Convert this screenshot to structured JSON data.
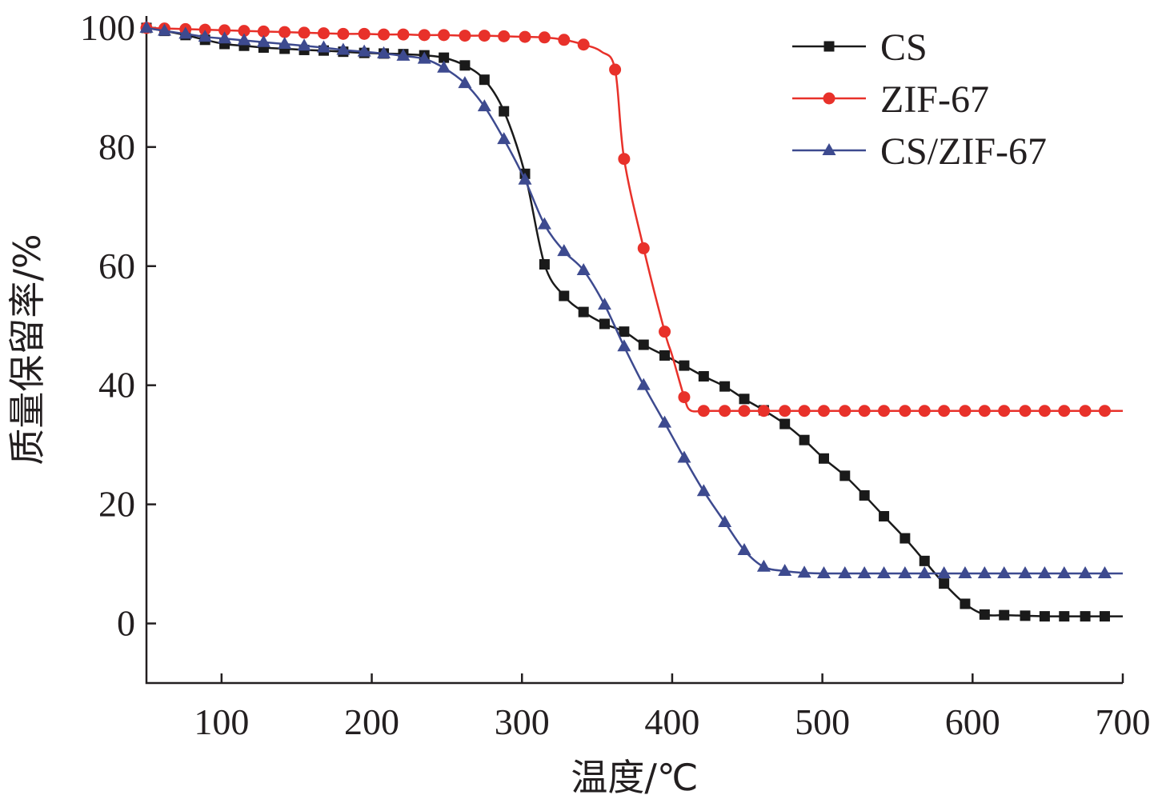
{
  "chart_data": {
    "type": "line",
    "xlabel": "温度/℃",
    "ylabel": "质量保留率/%",
    "xlim": [
      50,
      700
    ],
    "ylim": [
      -10,
      102
    ],
    "xticks": [
      100,
      200,
      300,
      400,
      500,
      600,
      700
    ],
    "yticks": [
      0,
      20,
      40,
      60,
      80,
      100
    ],
    "grid": false,
    "legend_position": "top-right",
    "series": [
      {
        "name": "CS",
        "color": "#1a1a1a",
        "marker": "square",
        "x": [
          50,
          62,
          76,
          89,
          102,
          115,
          128,
          142,
          155,
          168,
          181,
          195,
          208,
          221,
          235,
          248,
          262,
          275,
          288,
          302,
          315,
          328,
          341,
          355,
          368,
          381,
          395,
          408,
          421,
          435,
          448,
          461,
          475,
          488,
          501,
          515,
          528,
          541,
          555,
          568,
          581,
          595,
          608,
          621,
          635,
          648,
          661,
          675,
          688,
          700
        ],
        "y": [
          100,
          99.5,
          98.8,
          98.0,
          97.3,
          97.0,
          96.7,
          96.5,
          96.3,
          96.2,
          96.0,
          95.8,
          95.7,
          95.6,
          95.4,
          95.0,
          93.7,
          91.3,
          86.0,
          75.5,
          60.3,
          55.0,
          52.3,
          50.3,
          49.0,
          46.8,
          45.0,
          43.3,
          41.5,
          39.8,
          37.7,
          35.8,
          33.5,
          30.8,
          27.7,
          24.8,
          21.5,
          18.0,
          14.3,
          10.5,
          6.7,
          3.3,
          1.5,
          1.4,
          1.3,
          1.2,
          1.2,
          1.2,
          1.2,
          1.2
        ],
        "marker_indices": [
          0,
          1,
          2,
          3,
          4,
          5,
          6,
          7,
          8,
          9,
          10,
          11,
          12,
          13,
          14,
          15,
          16,
          17,
          18,
          19,
          20,
          21,
          22,
          23,
          24,
          25,
          26,
          27,
          28,
          29,
          30,
          31,
          32,
          33,
          34,
          35,
          36,
          37,
          38,
          39,
          40,
          41,
          42,
          43,
          44,
          45,
          46,
          47,
          48
        ]
      },
      {
        "name": "ZIF-67",
        "color": "#e8312a",
        "marker": "circle",
        "x": [
          50,
          62,
          76,
          89,
          102,
          115,
          128,
          142,
          155,
          168,
          181,
          195,
          208,
          221,
          235,
          248,
          262,
          275,
          288,
          302,
          315,
          328,
          341,
          353,
          362,
          368,
          381,
          395,
          400,
          408,
          412,
          421,
          435,
          448,
          461,
          475,
          488,
          501,
          515,
          528,
          541,
          555,
          568,
          581,
          595,
          608,
          621,
          635,
          648,
          661,
          675,
          688,
          700
        ],
        "y": [
          100,
          99.9,
          99.8,
          99.7,
          99.6,
          99.5,
          99.4,
          99.3,
          99.2,
          99.1,
          99.0,
          99.0,
          98.9,
          98.9,
          98.8,
          98.8,
          98.7,
          98.7,
          98.6,
          98.5,
          98.4,
          98.0,
          97.2,
          96.0,
          93.0,
          78.0,
          63.0,
          49.0,
          45.0,
          38.0,
          35.8,
          35.7,
          35.7,
          35.7,
          35.7,
          35.7,
          35.7,
          35.7,
          35.7,
          35.7,
          35.7,
          35.7,
          35.7,
          35.7,
          35.7,
          35.7,
          35.7,
          35.7,
          35.7,
          35.7,
          35.7,
          35.7,
          35.7
        ],
        "marker_indices": [
          0,
          1,
          2,
          3,
          4,
          5,
          6,
          7,
          8,
          9,
          10,
          11,
          12,
          13,
          14,
          15,
          16,
          17,
          18,
          19,
          20,
          21,
          22,
          24,
          25,
          26,
          27,
          29,
          31,
          32,
          33,
          34,
          35,
          36,
          37,
          38,
          39,
          40,
          41,
          42,
          43,
          44,
          45,
          46,
          47,
          48,
          49,
          50,
          51
        ]
      },
      {
        "name": "CS/ZIF-67",
        "color": "#3d4a8f",
        "marker": "triangle",
        "x": [
          50,
          62,
          76,
          89,
          102,
          115,
          128,
          142,
          155,
          168,
          181,
          195,
          208,
          221,
          235,
          248,
          262,
          275,
          288,
          302,
          315,
          328,
          341,
          355,
          368,
          381,
          395,
          408,
          421,
          435,
          448,
          461,
          475,
          488,
          501,
          515,
          528,
          541,
          555,
          568,
          581,
          595,
          608,
          621,
          635,
          648,
          661,
          675,
          688,
          700
        ],
        "y": [
          100,
          99.5,
          99.0,
          98.5,
          98.2,
          97.9,
          97.6,
          97.3,
          97.0,
          96.7,
          96.3,
          96.0,
          95.7,
          95.3,
          94.8,
          93.3,
          90.7,
          86.8,
          81.3,
          74.5,
          67.0,
          62.5,
          59.3,
          53.5,
          46.5,
          40.0,
          33.7,
          27.8,
          22.2,
          17.0,
          12.3,
          9.5,
          8.8,
          8.5,
          8.4,
          8.4,
          8.4,
          8.4,
          8.4,
          8.4,
          8.4,
          8.4,
          8.4,
          8.4,
          8.4,
          8.4,
          8.4,
          8.4,
          8.4,
          8.4
        ],
        "marker_indices": [
          0,
          1,
          2,
          3,
          4,
          5,
          6,
          7,
          8,
          9,
          10,
          11,
          12,
          13,
          14,
          15,
          16,
          17,
          18,
          19,
          20,
          21,
          22,
          23,
          24,
          25,
          26,
          27,
          28,
          29,
          30,
          31,
          32,
          33,
          34,
          35,
          36,
          37,
          38,
          39,
          40,
          41,
          42,
          43,
          44,
          45,
          46,
          47,
          48
        ]
      }
    ]
  }
}
